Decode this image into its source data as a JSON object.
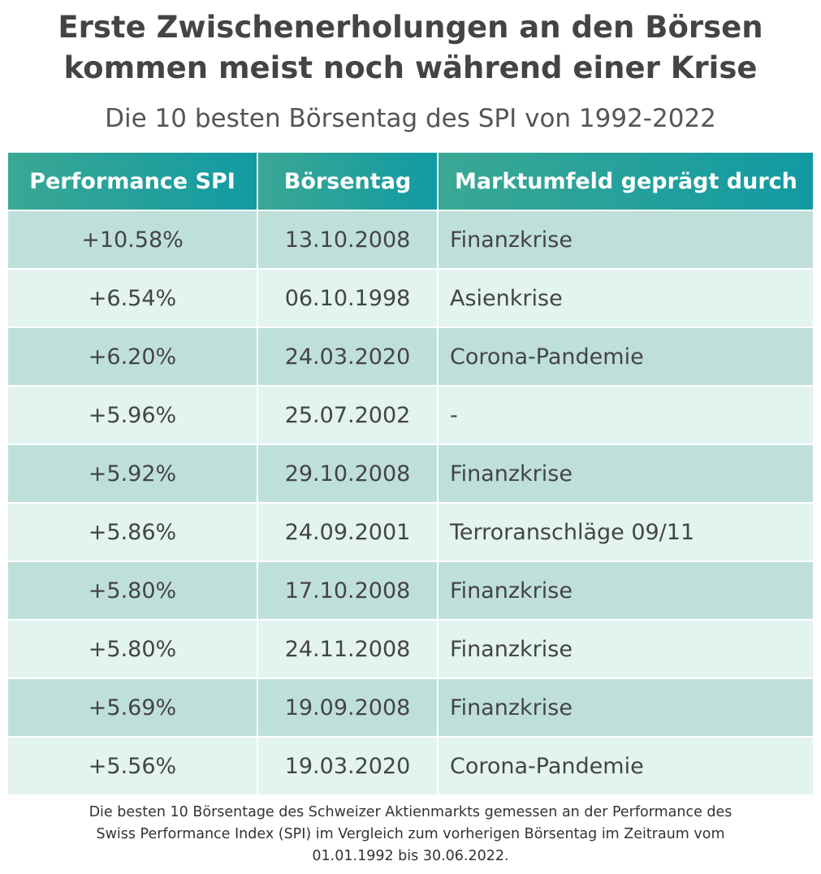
{
  "header": {
    "title_lines": [
      "Erste Zwischenerholungen an den Börsen",
      "kommen meist noch während einer Krise"
    ],
    "subtitle": "Die 10 besten Börsentag des SPI von 1992-2022"
  },
  "table": {
    "columns": [
      "Performance SPI",
      "Börsentag",
      "Marktumfeld geprägt durch"
    ],
    "rows": [
      [
        "+10.58%",
        "13.10.2008",
        "Finanzkrise"
      ],
      [
        "+6.54%",
        "06.10.1998",
        "Asienkrise"
      ],
      [
        "+6.20%",
        "24.03.2020",
        "Corona-Pandemie"
      ],
      [
        "+5.96%",
        "25.07.2002",
        "-"
      ],
      [
        "+5.92%",
        "29.10.2008",
        "Finanzkrise"
      ],
      [
        "+5.86%",
        "24.09.2001",
        "Terroranschläge 09/11"
      ],
      [
        "+5.80%",
        "17.10.2008",
        "Finanzkrise"
      ],
      [
        "+5.80%",
        "24.11.2008",
        "Finanzkrise"
      ],
      [
        "+5.69%",
        "19.09.2008",
        "Finanzkrise"
      ],
      [
        "+5.56%",
        "19.03.2020",
        "Corona-Pandemie"
      ]
    ]
  },
  "footnote_lines": [
    "Die besten 10 Börsentage des Schweizer Aktienmarkts gemessen an der Performance des",
    "Swiss Performance Index (SPI) im Vergleich zum vorherigen Börsentag im Zeitraum vom",
    "01.01.1992 bis 30.06.2022."
  ]
}
